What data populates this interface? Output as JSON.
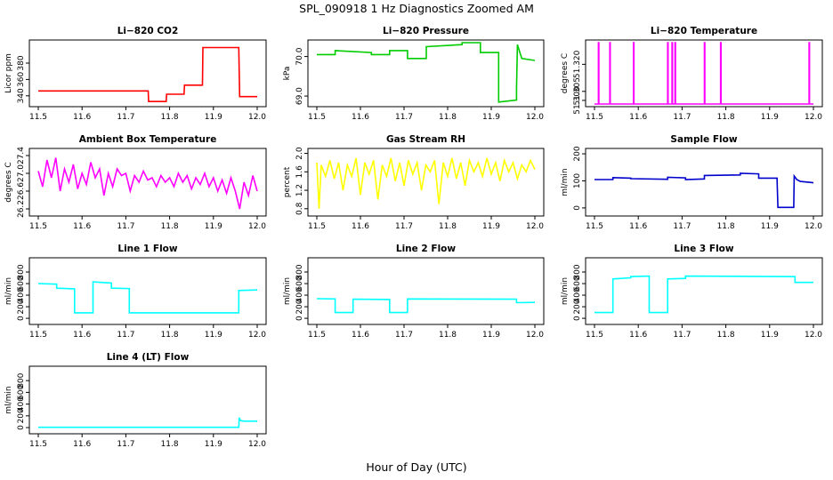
{
  "figure": {
    "title": "SPL_090918  1 Hz Diagnostics Zoomed AM",
    "xlabel": "Hour of Day (UTC)"
  },
  "chart_data": [
    {
      "type": "line",
      "title": "Li−820 CO2",
      "ylabel": "Licor ppm",
      "color": "#ff0000",
      "xlim": [
        11.5,
        12.0
      ],
      "ylim": [
        330,
        405
      ],
      "xticks": [
        "11.5",
        "11.6",
        "11.7",
        "11.8",
        "11.9",
        "12.0"
      ],
      "yticks": [
        {
          "v": 340,
          "label": "340"
        },
        {
          "v": 360,
          "label": "360"
        },
        {
          "v": 380,
          "label": "380"
        }
      ],
      "series": [
        {
          "x": [
            11.5,
            11.751,
            11.752,
            11.792,
            11.793,
            11.833,
            11.834,
            11.875,
            11.876,
            11.958,
            11.96,
            12.0
          ],
          "y": [
            346,
            346,
            333,
            333,
            342,
            342,
            353,
            353,
            399,
            399,
            339,
            339
          ]
        }
      ]
    },
    {
      "type": "line",
      "title": "Li−820 Pressure",
      "ylabel": "kPa",
      "color": "#00cc00",
      "xlim": [
        11.5,
        12.0
      ],
      "ylim": [
        68.8,
        70.35
      ],
      "xticks": [
        "11.5",
        "11.6",
        "11.7",
        "11.8",
        "11.9",
        "12.0"
      ],
      "yticks": [
        {
          "v": 69.0,
          "label": "69.0"
        },
        {
          "v": 70.0,
          "label": "70.0"
        }
      ],
      "series": [
        {
          "x": [
            11.5,
            11.542,
            11.542,
            11.625,
            11.625,
            11.667,
            11.667,
            11.708,
            11.708,
            11.751,
            11.751,
            11.833,
            11.833,
            11.875,
            11.875,
            11.917,
            11.917,
            11.917,
            11.958,
            11.958,
            11.96,
            11.97,
            12.0
          ],
          "y": [
            70.05,
            70.05,
            70.15,
            70.1,
            70.05,
            70.05,
            70.15,
            70.15,
            69.95,
            69.95,
            70.25,
            70.3,
            70.35,
            70.35,
            70.1,
            70.1,
            69.5,
            68.85,
            68.9,
            69.2,
            70.3,
            69.95,
            69.9
          ]
        }
      ]
    },
    {
      "type": "line",
      "title": "Li−820 Temperature",
      "ylabel": "degrees C",
      "color": "#ff00ff",
      "xlim": [
        11.5,
        12.0
      ],
      "ylim": [
        51.298,
        51.332
      ],
      "xticks": [
        "11.5",
        "11.6",
        "11.7",
        "11.8",
        "11.9",
        "12.0"
      ],
      "yticks": [
        {
          "v": 51.3,
          "label": "51.300"
        },
        {
          "v": 51.305,
          "label": "51.305"
        },
        {
          "v": 51.32,
          "label": "51.320"
        }
      ],
      "series": [
        {
          "x": [
            11.5,
            11.509,
            11.509,
            11.51,
            11.51,
            11.535,
            11.535,
            11.536,
            11.536,
            11.589,
            11.589,
            11.59,
            11.59,
            11.667,
            11.667,
            11.668,
            11.668,
            11.677,
            11.677,
            11.678,
            11.678,
            11.684,
            11.684,
            11.685,
            11.685,
            11.751,
            11.751,
            11.752,
            11.752,
            11.788,
            11.788,
            11.789,
            11.789,
            11.99,
            11.99,
            11.991,
            11.991,
            12.0
          ],
          "y": [
            51.298,
            51.298,
            51.332,
            51.332,
            51.298,
            51.298,
            51.332,
            51.332,
            51.298,
            51.298,
            51.332,
            51.332,
            51.298,
            51.298,
            51.332,
            51.332,
            51.298,
            51.298,
            51.332,
            51.332,
            51.298,
            51.298,
            51.332,
            51.332,
            51.298,
            51.298,
            51.332,
            51.332,
            51.298,
            51.298,
            51.332,
            51.332,
            51.298,
            51.298,
            51.332,
            51.332,
            51.298,
            51.298
          ]
        }
      ]
    },
    {
      "type": "line",
      "title": "Ambient Box Temperature",
      "ylabel": "degrees C",
      "color": "#ff00ff",
      "xlim": [
        11.5,
        12.0
      ],
      "ylim": [
        26.1,
        27.5
      ],
      "xticks": [
        "11.5",
        "11.6",
        "11.7",
        "11.8",
        "11.9",
        "12.0"
      ],
      "yticks": [
        {
          "v": 26.2,
          "label": "26.2"
        },
        {
          "v": 26.6,
          "label": "26.6"
        },
        {
          "v": 27.0,
          "label": "27.0"
        },
        {
          "v": 27.4,
          "label": "27.4"
        }
      ],
      "series": [
        {
          "x": [
            11.5,
            11.51,
            11.52,
            11.53,
            11.54,
            11.55,
            11.56,
            11.57,
            11.58,
            11.59,
            11.6,
            11.61,
            11.62,
            11.63,
            11.64,
            11.65,
            11.66,
            11.67,
            11.68,
            11.69,
            11.7,
            11.71,
            11.72,
            11.73,
            11.74,
            11.75,
            11.76,
            11.77,
            11.78,
            11.79,
            11.8,
            11.81,
            11.82,
            11.83,
            11.84,
            11.85,
            11.86,
            11.87,
            11.88,
            11.89,
            11.9,
            11.91,
            11.92,
            11.93,
            11.94,
            11.95,
            11.96,
            11.97,
            11.98,
            11.99,
            12.0
          ],
          "y": [
            27.05,
            26.7,
            27.3,
            26.9,
            27.35,
            26.6,
            27.1,
            26.8,
            27.2,
            26.65,
            27.0,
            26.75,
            27.25,
            26.9,
            27.1,
            26.5,
            27.0,
            26.7,
            27.1,
            26.95,
            27.0,
            26.6,
            26.95,
            26.8,
            27.05,
            26.85,
            26.9,
            26.7,
            26.95,
            26.8,
            26.9,
            26.7,
            27.0,
            26.8,
            26.95,
            26.65,
            26.9,
            26.75,
            27.0,
            26.7,
            26.9,
            26.6,
            26.85,
            26.55,
            26.9,
            26.6,
            26.2,
            26.8,
            26.5,
            26.95,
            26.6
          ]
        }
      ]
    },
    {
      "type": "line",
      "title": "Gas Stream RH",
      "ylabel": "percent",
      "color": "#ffff00",
      "xlim": [
        11.5,
        12.0
      ],
      "ylim": [
        0.7,
        2.05
      ],
      "xticks": [
        "11.5",
        "11.6",
        "11.7",
        "11.8",
        "11.9",
        "12.0"
      ],
      "yticks": [
        {
          "v": 0.8,
          "label": "0.8"
        },
        {
          "v": 1.2,
          "label": "1.2"
        },
        {
          "v": 1.6,
          "label": "1.6"
        },
        {
          "v": 2.0,
          "label": "2.0"
        }
      ],
      "series": [
        {
          "x": [
            11.5,
            11.505,
            11.51,
            11.52,
            11.53,
            11.54,
            11.55,
            11.56,
            11.57,
            11.58,
            11.59,
            11.6,
            11.61,
            11.62,
            11.63,
            11.64,
            11.65,
            11.66,
            11.67,
            11.68,
            11.69,
            11.7,
            11.71,
            11.72,
            11.73,
            11.74,
            11.75,
            11.76,
            11.77,
            11.78,
            11.79,
            11.8,
            11.81,
            11.82,
            11.83,
            11.84,
            11.85,
            11.86,
            11.87,
            11.88,
            11.89,
            11.9,
            11.91,
            11.92,
            11.93,
            11.94,
            11.95,
            11.96,
            11.97,
            11.98,
            11.99,
            12.0
          ],
          "y": [
            1.8,
            0.8,
            1.75,
            1.5,
            1.85,
            1.45,
            1.8,
            1.2,
            1.75,
            1.5,
            1.9,
            1.1,
            1.8,
            1.55,
            1.85,
            1.0,
            1.75,
            1.5,
            1.9,
            1.4,
            1.8,
            1.3,
            1.85,
            1.55,
            1.8,
            1.2,
            1.75,
            1.6,
            1.85,
            0.9,
            1.8,
            1.5,
            1.9,
            1.45,
            1.8,
            1.3,
            1.85,
            1.6,
            1.8,
            1.5,
            1.9,
            1.55,
            1.8,
            1.4,
            1.85,
            1.6,
            1.8,
            1.45,
            1.75,
            1.6,
            1.85,
            1.65
          ]
        }
      ]
    },
    {
      "type": "line",
      "title": "Sample Flow",
      "ylabel": "ml/min",
      "color": "#0000cc",
      "xlim": [
        11.5,
        12.0
      ],
      "ylim": [
        -20,
        210
      ],
      "xticks": [
        "11.5",
        "11.6",
        "11.7",
        "11.8",
        "11.9",
        "12.0"
      ],
      "yticks": [
        {
          "v": 0,
          "label": "0"
        },
        {
          "v": 100,
          "label": "100"
        },
        {
          "v": 200,
          "label": "200"
        }
      ],
      "series": [
        {
          "x": [
            11.5,
            11.542,
            11.542,
            11.583,
            11.583,
            11.667,
            11.667,
            11.708,
            11.708,
            11.751,
            11.751,
            11.833,
            11.833,
            11.875,
            11.875,
            11.917,
            11.917,
            11.919,
            11.955,
            11.956,
            11.962,
            11.97,
            12.0
          ],
          "y": [
            105,
            105,
            112,
            110,
            108,
            106,
            113,
            111,
            105,
            107,
            120,
            122,
            128,
            126,
            110,
            110,
            100,
            2,
            2,
            118,
            105,
            98,
            93
          ]
        }
      ]
    },
    {
      "type": "line",
      "title": "Line 1 Flow",
      "ylabel": "ml/min",
      "color": "#00ffff",
      "xlim": [
        11.5,
        12.0
      ],
      "ylim": [
        -60,
        1000
      ],
      "xticks": [
        "11.5",
        "11.6",
        "11.7",
        "11.8",
        "11.9",
        "12.0"
      ],
      "yticks": [
        {
          "v": 0,
          "label": "0"
        },
        {
          "v": 200,
          "label": "200"
        },
        {
          "v": 400,
          "label": "400"
        },
        {
          "v": 600,
          "label": "600"
        },
        {
          "v": 800,
          "label": "800"
        }
      ],
      "series": [
        {
          "x": [
            11.5,
            11.542,
            11.542,
            11.583,
            11.583,
            11.625,
            11.625,
            11.667,
            11.667,
            11.708,
            11.708,
            11.958,
            11.958,
            12.0
          ],
          "y": [
            600,
            590,
            520,
            510,
            95,
            95,
            630,
            610,
            520,
            515,
            95,
            95,
            480,
            490
          ]
        }
      ]
    },
    {
      "type": "line",
      "title": "Line 2 Flow",
      "ylabel": "ml/min",
      "color": "#00ffff",
      "xlim": [
        11.5,
        12.0
      ],
      "ylim": [
        -60,
        1000
      ],
      "xticks": [
        "11.5",
        "11.6",
        "11.7",
        "11.8",
        "11.9",
        "12.0"
      ],
      "yticks": [
        {
          "v": 0,
          "label": "0"
        },
        {
          "v": 200,
          "label": "200"
        },
        {
          "v": 400,
          "label": "400"
        },
        {
          "v": 600,
          "label": "600"
        },
        {
          "v": 800,
          "label": "800"
        }
      ],
      "series": [
        {
          "x": [
            11.5,
            11.542,
            11.542,
            11.583,
            11.583,
            11.667,
            11.667,
            11.708,
            11.708,
            11.958,
            11.958,
            12.0
          ],
          "y": [
            340,
            335,
            100,
            100,
            330,
            325,
            100,
            100,
            335,
            330,
            270,
            275
          ]
        }
      ]
    },
    {
      "type": "line",
      "title": "Line 3 Flow",
      "ylabel": "ml/min",
      "color": "#00ffff",
      "xlim": [
        11.5,
        12.0
      ],
      "ylim": [
        -60,
        1000
      ],
      "xticks": [
        "11.5",
        "11.6",
        "11.7",
        "11.8",
        "11.9",
        "12.0"
      ],
      "yticks": [
        {
          "v": 0,
          "label": "0"
        },
        {
          "v": 200,
          "label": "200"
        },
        {
          "v": 400,
          "label": "400"
        },
        {
          "v": 600,
          "label": "600"
        },
        {
          "v": 800,
          "label": "800"
        }
      ],
      "series": [
        {
          "x": [
            11.5,
            11.542,
            11.542,
            11.583,
            11.583,
            11.625,
            11.625,
            11.667,
            11.667,
            11.708,
            11.708,
            11.958,
            11.958,
            12.0
          ],
          "y": [
            100,
            100,
            680,
            700,
            720,
            730,
            100,
            100,
            680,
            690,
            730,
            720,
            620,
            620
          ]
        }
      ]
    },
    {
      "type": "line",
      "title": "Line 4 (LT) Flow",
      "ylabel": "ml/min",
      "color": "#00ffff",
      "xlim": [
        11.5,
        12.0
      ],
      "ylim": [
        -60,
        1000
      ],
      "xticks": [
        "11.5",
        "11.6",
        "11.7",
        "11.8",
        "11.9",
        "12.0"
      ],
      "yticks": [
        {
          "v": 0,
          "label": "0"
        },
        {
          "v": 200,
          "label": "200"
        },
        {
          "v": 400,
          "label": "400"
        },
        {
          "v": 600,
          "label": "600"
        },
        {
          "v": 800,
          "label": "800"
        }
      ],
      "series": [
        {
          "x": [
            11.5,
            11.958,
            11.959,
            11.962,
            11.97,
            12.0
          ],
          "y": [
            5,
            5,
            170,
            120,
            110,
            110
          ]
        }
      ]
    }
  ]
}
